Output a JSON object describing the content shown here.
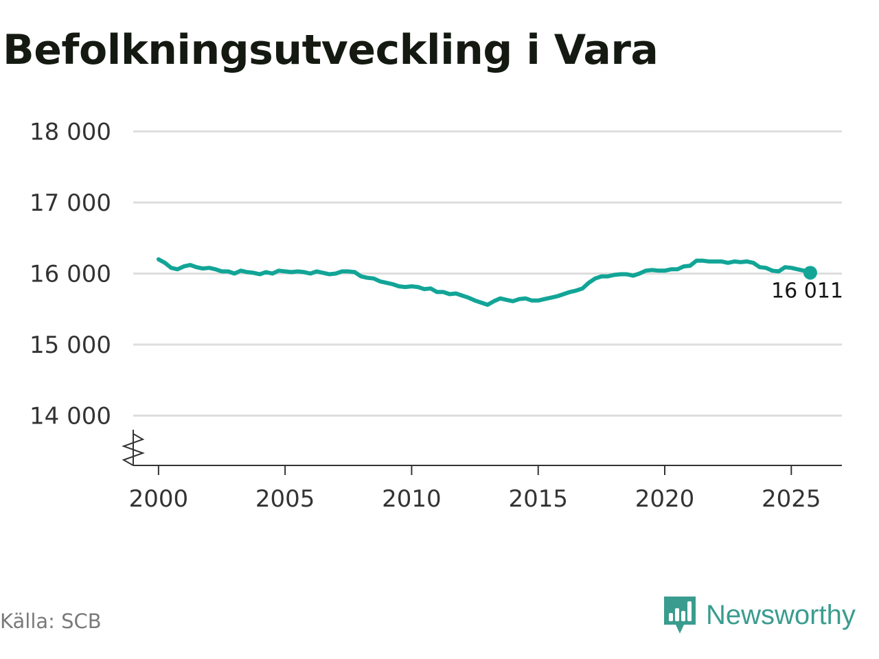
{
  "header": {
    "title": "Befolkningsutveckling i Vara"
  },
  "footer": {
    "source": "Källa: SCB",
    "brand": "Newsworthy"
  },
  "colors": {
    "line": "#12a597",
    "grid": "#dddddd",
    "axis": "#333333",
    "brand": "#3a9c8f"
  },
  "icons": {
    "axis_break": "zigzag-break-icon",
    "brand_logo": "newsworthy-logo-icon"
  },
  "chart_data": {
    "type": "line",
    "title": "Befolkningsutveckling i Vara",
    "xlabel": "",
    "ylabel": "",
    "xlim": [
      1999,
      2027
    ],
    "ylim": [
      13300,
      18400
    ],
    "y_axis_break": true,
    "grid": "horizontal",
    "legend": "none",
    "yticks": [
      14000,
      15000,
      16000,
      17000,
      18000
    ],
    "ytick_labels": [
      "14 000",
      "15 000",
      "16 000",
      "17 000",
      "18 000"
    ],
    "xticks": [
      2000,
      2005,
      2010,
      2015,
      2020,
      2025
    ],
    "xtick_labels": [
      "2000",
      "2005",
      "2010",
      "2015",
      "2020",
      "2025"
    ],
    "end_label": "16 011",
    "series": [
      {
        "x": [
          2000.0,
          2000.25,
          2000.5,
          2000.75,
          2001.0,
          2001.25,
          2001.5,
          2001.75,
          2002.0,
          2002.25,
          2002.5,
          2002.75,
          2003.0,
          2003.25,
          2003.5,
          2003.75,
          2004.0,
          2004.25,
          2004.5,
          2004.75,
          2005.0,
          2005.25,
          2005.5,
          2005.75,
          2006.0,
          2006.25,
          2006.5,
          2006.75,
          2007.0,
          2007.25,
          2007.5,
          2007.75,
          2008.0,
          2008.25,
          2008.5,
          2008.75,
          2009.0,
          2009.25,
          2009.5,
          2009.75,
          2010.0,
          2010.25,
          2010.5,
          2010.75,
          2011.0,
          2011.25,
          2011.5,
          2011.75,
          2012.0,
          2012.25,
          2012.5,
          2012.75,
          2013.0,
          2013.25,
          2013.5,
          2013.75,
          2014.0,
          2014.25,
          2014.5,
          2014.75,
          2015.0,
          2015.25,
          2015.5,
          2015.75,
          2016.0,
          2016.25,
          2016.5,
          2016.75,
          2017.0,
          2017.25,
          2017.5,
          2017.75,
          2018.0,
          2018.25,
          2018.5,
          2018.75,
          2019.0,
          2019.25,
          2019.5,
          2019.75,
          2020.0,
          2020.25,
          2020.5,
          2020.75,
          2021.0,
          2021.25,
          2021.5,
          2021.75,
          2022.0,
          2022.25,
          2022.5,
          2022.75,
          2023.0,
          2023.25,
          2023.5,
          2023.75,
          2024.0,
          2024.25,
          2024.5,
          2024.75,
          2025.0,
          2025.25,
          2025.5,
          2025.75
        ],
        "y": [
          16200,
          16150,
          16080,
          16060,
          16100,
          16120,
          16090,
          16070,
          16080,
          16060,
          16030,
          16030,
          16000,
          16040,
          16020,
          16010,
          15990,
          16020,
          16000,
          16040,
          16030,
          16020,
          16030,
          16020,
          16000,
          16030,
          16010,
          15990,
          16000,
          16030,
          16030,
          16020,
          15960,
          15940,
          15930,
          15890,
          15870,
          15850,
          15820,
          15810,
          15820,
          15810,
          15780,
          15790,
          15740,
          15740,
          15710,
          15720,
          15690,
          15660,
          15620,
          15590,
          15560,
          15610,
          15650,
          15630,
          15610,
          15640,
          15650,
          15620,
          15620,
          15640,
          15660,
          15680,
          15710,
          15740,
          15760,
          15790,
          15870,
          15930,
          15960,
          15960,
          15980,
          15990,
          15990,
          15970,
          16000,
          16040,
          16050,
          16040,
          16040,
          16060,
          16060,
          16100,
          16110,
          16180,
          16180,
          16170,
          16170,
          16170,
          16150,
          16170,
          16160,
          16170,
          16150,
          16090,
          16080,
          16040,
          16030,
          16090,
          16080,
          16060,
          16040,
          16011
        ]
      }
    ]
  }
}
